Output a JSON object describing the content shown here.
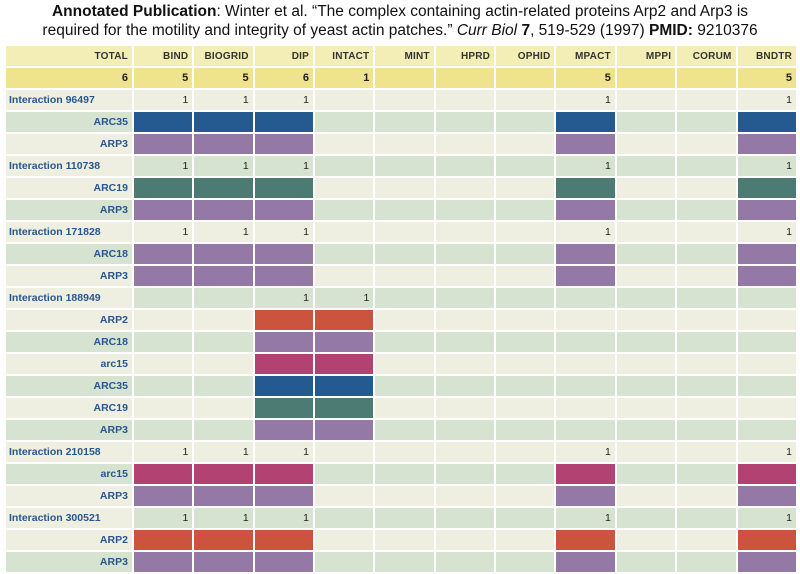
{
  "citation": {
    "label": "Annotated Publication",
    "text1": ": Winter et al. “The complex containing actin-related proteins Arp2 and Arp3 is",
    "text2": "required for the motility and integrity of yeast actin patches.”",
    "journal": "Curr Biol",
    "volume": "7",
    "pages": ", 519-529 (1997)",
    "pmid_label": "PMID:",
    "pmid": "9210376"
  },
  "columns": [
    "TOTAL",
    "BIND",
    "BIOGRID",
    "DIP",
    "INTACT",
    "MINT",
    "HPRD",
    "OPHID",
    "MPACT",
    "MPPI",
    "CORUM",
    "BNDTR"
  ],
  "totals": [
    "6",
    "5",
    "5",
    "6",
    "1",
    "",
    "",
    "",
    "5",
    "",
    "",
    "5"
  ],
  "colors": {
    "ARC35": "#255a91",
    "ARC19": "#4b7b73",
    "ARP3": "#9478a6",
    "ARC18": "#9478a6",
    "ARP2": "#cc533e",
    "arc15": "#b24272"
  },
  "interactions": [
    {
      "label": "Interaction 96497",
      "counts": [
        "",
        "1",
        "1",
        "1",
        "",
        "",
        "",
        "",
        "1",
        "",
        "",
        "1"
      ],
      "proteins": [
        {
          "name": "ARC35",
          "bars": [
            false,
            true,
            true,
            true,
            false,
            false,
            false,
            false,
            true,
            false,
            false,
            true
          ]
        },
        {
          "name": "ARP3",
          "bars": [
            false,
            true,
            true,
            true,
            false,
            false,
            false,
            false,
            true,
            false,
            false,
            true
          ]
        }
      ]
    },
    {
      "label": "Interaction 110738",
      "counts": [
        "",
        "1",
        "1",
        "1",
        "",
        "",
        "",
        "",
        "1",
        "",
        "",
        "1"
      ],
      "proteins": [
        {
          "name": "ARC19",
          "bars": [
            false,
            true,
            true,
            true,
            false,
            false,
            false,
            false,
            true,
            false,
            false,
            true
          ]
        },
        {
          "name": "ARP3",
          "bars": [
            false,
            true,
            true,
            true,
            false,
            false,
            false,
            false,
            true,
            false,
            false,
            true
          ]
        }
      ]
    },
    {
      "label": "Interaction 171828",
      "counts": [
        "",
        "1",
        "1",
        "1",
        "",
        "",
        "",
        "",
        "1",
        "",
        "",
        "1"
      ],
      "proteins": [
        {
          "name": "ARC18",
          "bars": [
            false,
            true,
            true,
            true,
            false,
            false,
            false,
            false,
            true,
            false,
            false,
            true
          ]
        },
        {
          "name": "ARP3",
          "bars": [
            false,
            true,
            true,
            true,
            false,
            false,
            false,
            false,
            true,
            false,
            false,
            true
          ]
        }
      ]
    },
    {
      "label": "Interaction 188949",
      "counts": [
        "",
        "",
        "",
        "1",
        "1",
        "",
        "",
        "",
        "",
        "",
        "",
        ""
      ],
      "proteins": [
        {
          "name": "ARP2",
          "bars": [
            false,
            false,
            false,
            true,
            true,
            false,
            false,
            false,
            false,
            false,
            false,
            false
          ]
        },
        {
          "name": "ARC18",
          "bars": [
            false,
            false,
            false,
            true,
            true,
            false,
            false,
            false,
            false,
            false,
            false,
            false
          ]
        },
        {
          "name": "arc15",
          "bars": [
            false,
            false,
            false,
            true,
            true,
            false,
            false,
            false,
            false,
            false,
            false,
            false
          ]
        },
        {
          "name": "ARC35",
          "bars": [
            false,
            false,
            false,
            true,
            true,
            false,
            false,
            false,
            false,
            false,
            false,
            false
          ]
        },
        {
          "name": "ARC19",
          "bars": [
            false,
            false,
            false,
            true,
            true,
            false,
            false,
            false,
            false,
            false,
            false,
            false
          ]
        },
        {
          "name": "ARP3",
          "bars": [
            false,
            false,
            false,
            true,
            true,
            false,
            false,
            false,
            false,
            false,
            false,
            false
          ]
        }
      ]
    },
    {
      "label": "Interaction 210158",
      "counts": [
        "",
        "1",
        "1",
        "1",
        "",
        "",
        "",
        "",
        "1",
        "",
        "",
        "1"
      ],
      "proteins": [
        {
          "name": "arc15",
          "bars": [
            false,
            true,
            true,
            true,
            false,
            false,
            false,
            false,
            true,
            false,
            false,
            true
          ]
        },
        {
          "name": "ARP3",
          "bars": [
            false,
            true,
            true,
            true,
            false,
            false,
            false,
            false,
            true,
            false,
            false,
            true
          ]
        }
      ]
    },
    {
      "label": "Interaction 300521",
      "counts": [
        "",
        "1",
        "1",
        "1",
        "",
        "",
        "",
        "",
        "1",
        "",
        "",
        "1"
      ],
      "proteins": [
        {
          "name": "ARP2",
          "bars": [
            false,
            true,
            true,
            true,
            false,
            false,
            false,
            false,
            true,
            false,
            false,
            true
          ]
        },
        {
          "name": "ARP3",
          "bars": [
            false,
            true,
            true,
            true,
            false,
            false,
            false,
            false,
            true,
            false,
            false,
            true
          ]
        }
      ]
    }
  ]
}
